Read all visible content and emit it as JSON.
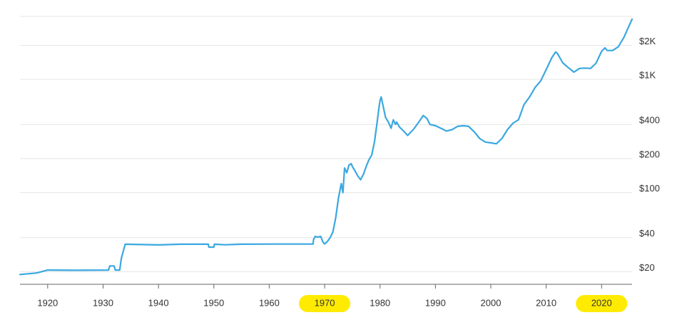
{
  "chart_data": {
    "type": "line",
    "title": "",
    "xlabel": "",
    "ylabel": "",
    "x_scale": "linear",
    "y_scale": "log",
    "xlim": [
      1915,
      2025.5
    ],
    "ylim": [
      15.5,
      3600
    ],
    "grid": "horizontal",
    "line_color": "#3aa8e0",
    "highlight_color": "#ffeb00",
    "x_ticks": [
      {
        "value": 1920,
        "label": "1920"
      },
      {
        "value": 1930,
        "label": "1930"
      },
      {
        "value": 1940,
        "label": "1940"
      },
      {
        "value": 1950,
        "label": "1950"
      },
      {
        "value": 1960,
        "label": "1960"
      },
      {
        "value": 1970,
        "label": "1970",
        "highlighted": true
      },
      {
        "value": 1980,
        "label": "1980"
      },
      {
        "value": 1990,
        "label": "1990"
      },
      {
        "value": 2000,
        "label": "2000"
      },
      {
        "value": 2010,
        "label": "2010"
      },
      {
        "value": 2020,
        "label": "2020",
        "highlighted": true
      }
    ],
    "y_ticks": [
      {
        "value": 20,
        "label": "$20"
      },
      {
        "value": 40,
        "label": "$40"
      },
      {
        "value": 100,
        "label": "$100"
      },
      {
        "value": 200,
        "label": "$200"
      },
      {
        "value": 400,
        "label": "$400"
      },
      {
        "value": 1000,
        "label": "$1K"
      },
      {
        "value": 2000,
        "label": "$2K"
      }
    ],
    "series": [
      {
        "x": [
          1915,
          1918,
          1920,
          1925,
          1931,
          1931.2,
          1932,
          1932.2,
          1933,
          1933.3,
          1934,
          1940,
          1944,
          1948,
          1949,
          1949.1,
          1950,
          1950.1,
          1952,
          1955,
          1960,
          1967.9,
          1968,
          1968.3,
          1968.8,
          1969.3,
          1969.7,
          1970,
          1970.5,
          1971,
          1971.5,
          1972,
          1972.5,
          1973,
          1973.3,
          1973.6,
          1974,
          1974.4,
          1974.8,
          1975,
          1975.5,
          1976,
          1976.5,
          1977,
          1977.5,
          1978,
          1978.5,
          1979,
          1979.4,
          1979.8,
          1980,
          1980.2,
          1980.5,
          1981,
          1981.5,
          1982,
          1982.4,
          1982.8,
          1983,
          1983.5,
          1984,
          1984.5,
          1985,
          1985.5,
          1986,
          1987,
          1987.8,
          1988.5,
          1989,
          1990,
          1991,
          1992,
          1993,
          1994,
          1995,
          1996,
          1997,
          1998,
          1999,
          2000,
          2001,
          2002,
          2003,
          2004,
          2005,
          2006,
          2007,
          2008,
          2009,
          2010,
          2011,
          2011.7,
          2012,
          2013,
          2014,
          2015,
          2016,
          2017,
          2018,
          2019,
          2020,
          2020.6,
          2021,
          2022,
          2023,
          2024,
          2025,
          2025.5
        ],
        "y": [
          18.9,
          19.5,
          20.7,
          20.6,
          20.7,
          22.5,
          22.5,
          20.7,
          20.7,
          26.3,
          35,
          34.5,
          35,
          35,
          35,
          33,
          33,
          35,
          34.6,
          35,
          35.1,
          35.1,
          38.5,
          41,
          40.5,
          41,
          36.5,
          35.2,
          37,
          40,
          45,
          60,
          90,
          120,
          100,
          165,
          150,
          175,
          180,
          170,
          155,
          140,
          130,
          145,
          170,
          195,
          215,
          280,
          390,
          560,
          650,
          700,
          600,
          460,
          420,
          370,
          440,
          400,
          420,
          380,
          360,
          340,
          320,
          340,
          360,
          420,
          480,
          450,
          400,
          390,
          370,
          350,
          360,
          385,
          390,
          385,
          345,
          300,
          280,
          275,
          270,
          300,
          360,
          410,
          440,
          600,
          700,
          850,
          970,
          1220,
          1550,
          1750,
          1700,
          1400,
          1270,
          1160,
          1250,
          1260,
          1250,
          1390,
          1770,
          1900,
          1800,
          1800,
          1940,
          2340,
          3000,
          3400
        ]
      }
    ]
  }
}
